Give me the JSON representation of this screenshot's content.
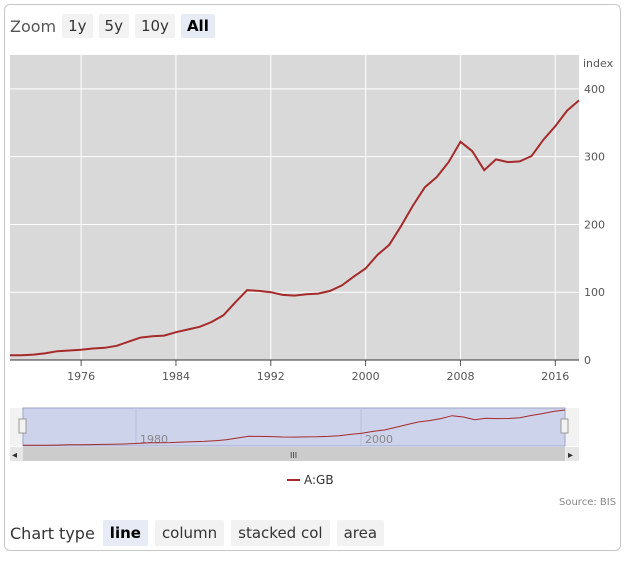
{
  "zoom": {
    "label": "Zoom",
    "buttons": [
      "1y",
      "5y",
      "10y",
      "All"
    ],
    "selected": "All"
  },
  "chart_type": {
    "label": "Chart type",
    "buttons": [
      "line",
      "column",
      "stacked col",
      "area"
    ],
    "selected": "line"
  },
  "source": "Source: BIS",
  "colors": {
    "series": "#a52a2a",
    "plot_bg": "#d9d9d9",
    "navigator_mask": "#cdd3ea"
  },
  "navigator": {
    "labels": [
      "1980",
      "2000"
    ],
    "scrollbar_grip": "III",
    "left_arrow": "◂",
    "right_arrow": "▸"
  },
  "chart_data": {
    "type": "line",
    "title": "",
    "xlabel": "",
    "ylabel": "index",
    "xlim": [
      1970,
      2018
    ],
    "ylim": [
      0,
      400
    ],
    "x_ticks": [
      "1976",
      "1984",
      "1992",
      "2000",
      "2008",
      "2016"
    ],
    "y_ticks": [
      "0",
      "100",
      "200",
      "300",
      "400"
    ],
    "grid": true,
    "legend": "bottom",
    "series": [
      {
        "name": "A:GB",
        "color": "#a52a2a",
        "x": [
          1970,
          1971,
          1972,
          1973,
          1974,
          1975,
          1976,
          1977,
          1978,
          1979,
          1980,
          1981,
          1982,
          1983,
          1984,
          1985,
          1986,
          1987,
          1988,
          1989,
          1990,
          1991,
          1992,
          1993,
          1994,
          1995,
          1996,
          1997,
          1998,
          1999,
          2000,
          2001,
          2002,
          2003,
          2004,
          2005,
          2006,
          2007,
          2008,
          2009,
          2010,
          2011,
          2012,
          2013,
          2014,
          2015,
          2016,
          2017,
          2018
        ],
        "values": [
          7,
          7,
          8,
          10,
          13,
          14,
          15,
          17,
          18,
          21,
          27,
          33,
          35,
          36,
          41,
          45,
          49,
          56,
          66,
          85,
          103,
          102,
          100,
          96,
          95,
          97,
          98,
          102,
          110,
          123,
          135,
          155,
          170,
          198,
          228,
          255,
          270,
          292,
          322,
          308,
          280,
          296,
          292,
          293,
          301,
          325,
          345,
          368,
          383
        ]
      }
    ]
  }
}
